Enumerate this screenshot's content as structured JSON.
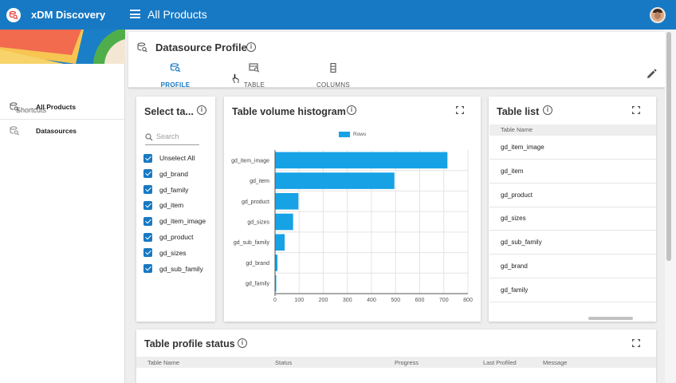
{
  "app": {
    "name": "xDM Discovery",
    "title": "All Products"
  },
  "sidebar": {
    "shortcuts_title": "Shortcuts",
    "items": [
      {
        "label": "All Products",
        "icon": "datasource-search-icon"
      },
      {
        "label": "Datasources",
        "icon": "datasource-search-icon"
      }
    ]
  },
  "header": {
    "title": "Datasource Profile",
    "tabs": [
      {
        "label": "PROFILE",
        "icon": "database-search-icon",
        "active": true
      },
      {
        "label": "TABLE",
        "icon": "table-search-icon",
        "active": false
      },
      {
        "label": "COLUMNS",
        "icon": "columns-icon",
        "active": false
      }
    ]
  },
  "select_tables": {
    "title": "Select ta...",
    "search_placeholder": "Search",
    "items": [
      {
        "label": "Unselect All",
        "checked": true
      },
      {
        "label": "gd_brand",
        "checked": true
      },
      {
        "label": "gd_family",
        "checked": true
      },
      {
        "label": "gd_item",
        "checked": true
      },
      {
        "label": "gd_item_image",
        "checked": true
      },
      {
        "label": "gd_product",
        "checked": true
      },
      {
        "label": "gd_sizes",
        "checked": true
      },
      {
        "label": "gd_sub_family",
        "checked": true
      }
    ]
  },
  "histogram": {
    "title": "Table volume histogram",
    "legend_label": "Rows",
    "bar_color": "#17a2e5"
  },
  "chart_data": {
    "type": "bar",
    "orientation": "horizontal",
    "categories": [
      "gd_item_image",
      "gd_item",
      "gd_product",
      "gd_sizes",
      "gd_sub_family",
      "gd_brand",
      "gd_family"
    ],
    "series": [
      {
        "name": "Rows",
        "values": [
          715,
          495,
          97,
          75,
          40,
          10,
          5
        ]
      }
    ],
    "xlim": [
      0,
      800
    ],
    "xticks": [
      "0",
      "100",
      "200",
      "300",
      "400",
      "500",
      "600",
      "700",
      "800"
    ],
    "grid": true,
    "legend": "top"
  },
  "table_list": {
    "title": "Table list",
    "column_header": "Table Name",
    "rows": [
      "gd_item_image",
      "gd_item",
      "gd_product",
      "gd_sizes",
      "gd_sub_family",
      "gd_brand",
      "gd_family"
    ]
  },
  "profile_status": {
    "title": "Table profile status",
    "columns": [
      "Table Name",
      "Status",
      "Progress",
      "Last Profiled",
      "Message"
    ]
  },
  "colors": {
    "topbar": "#1779c4",
    "accent": "#1779c4",
    "bar": "#17a2e5"
  }
}
